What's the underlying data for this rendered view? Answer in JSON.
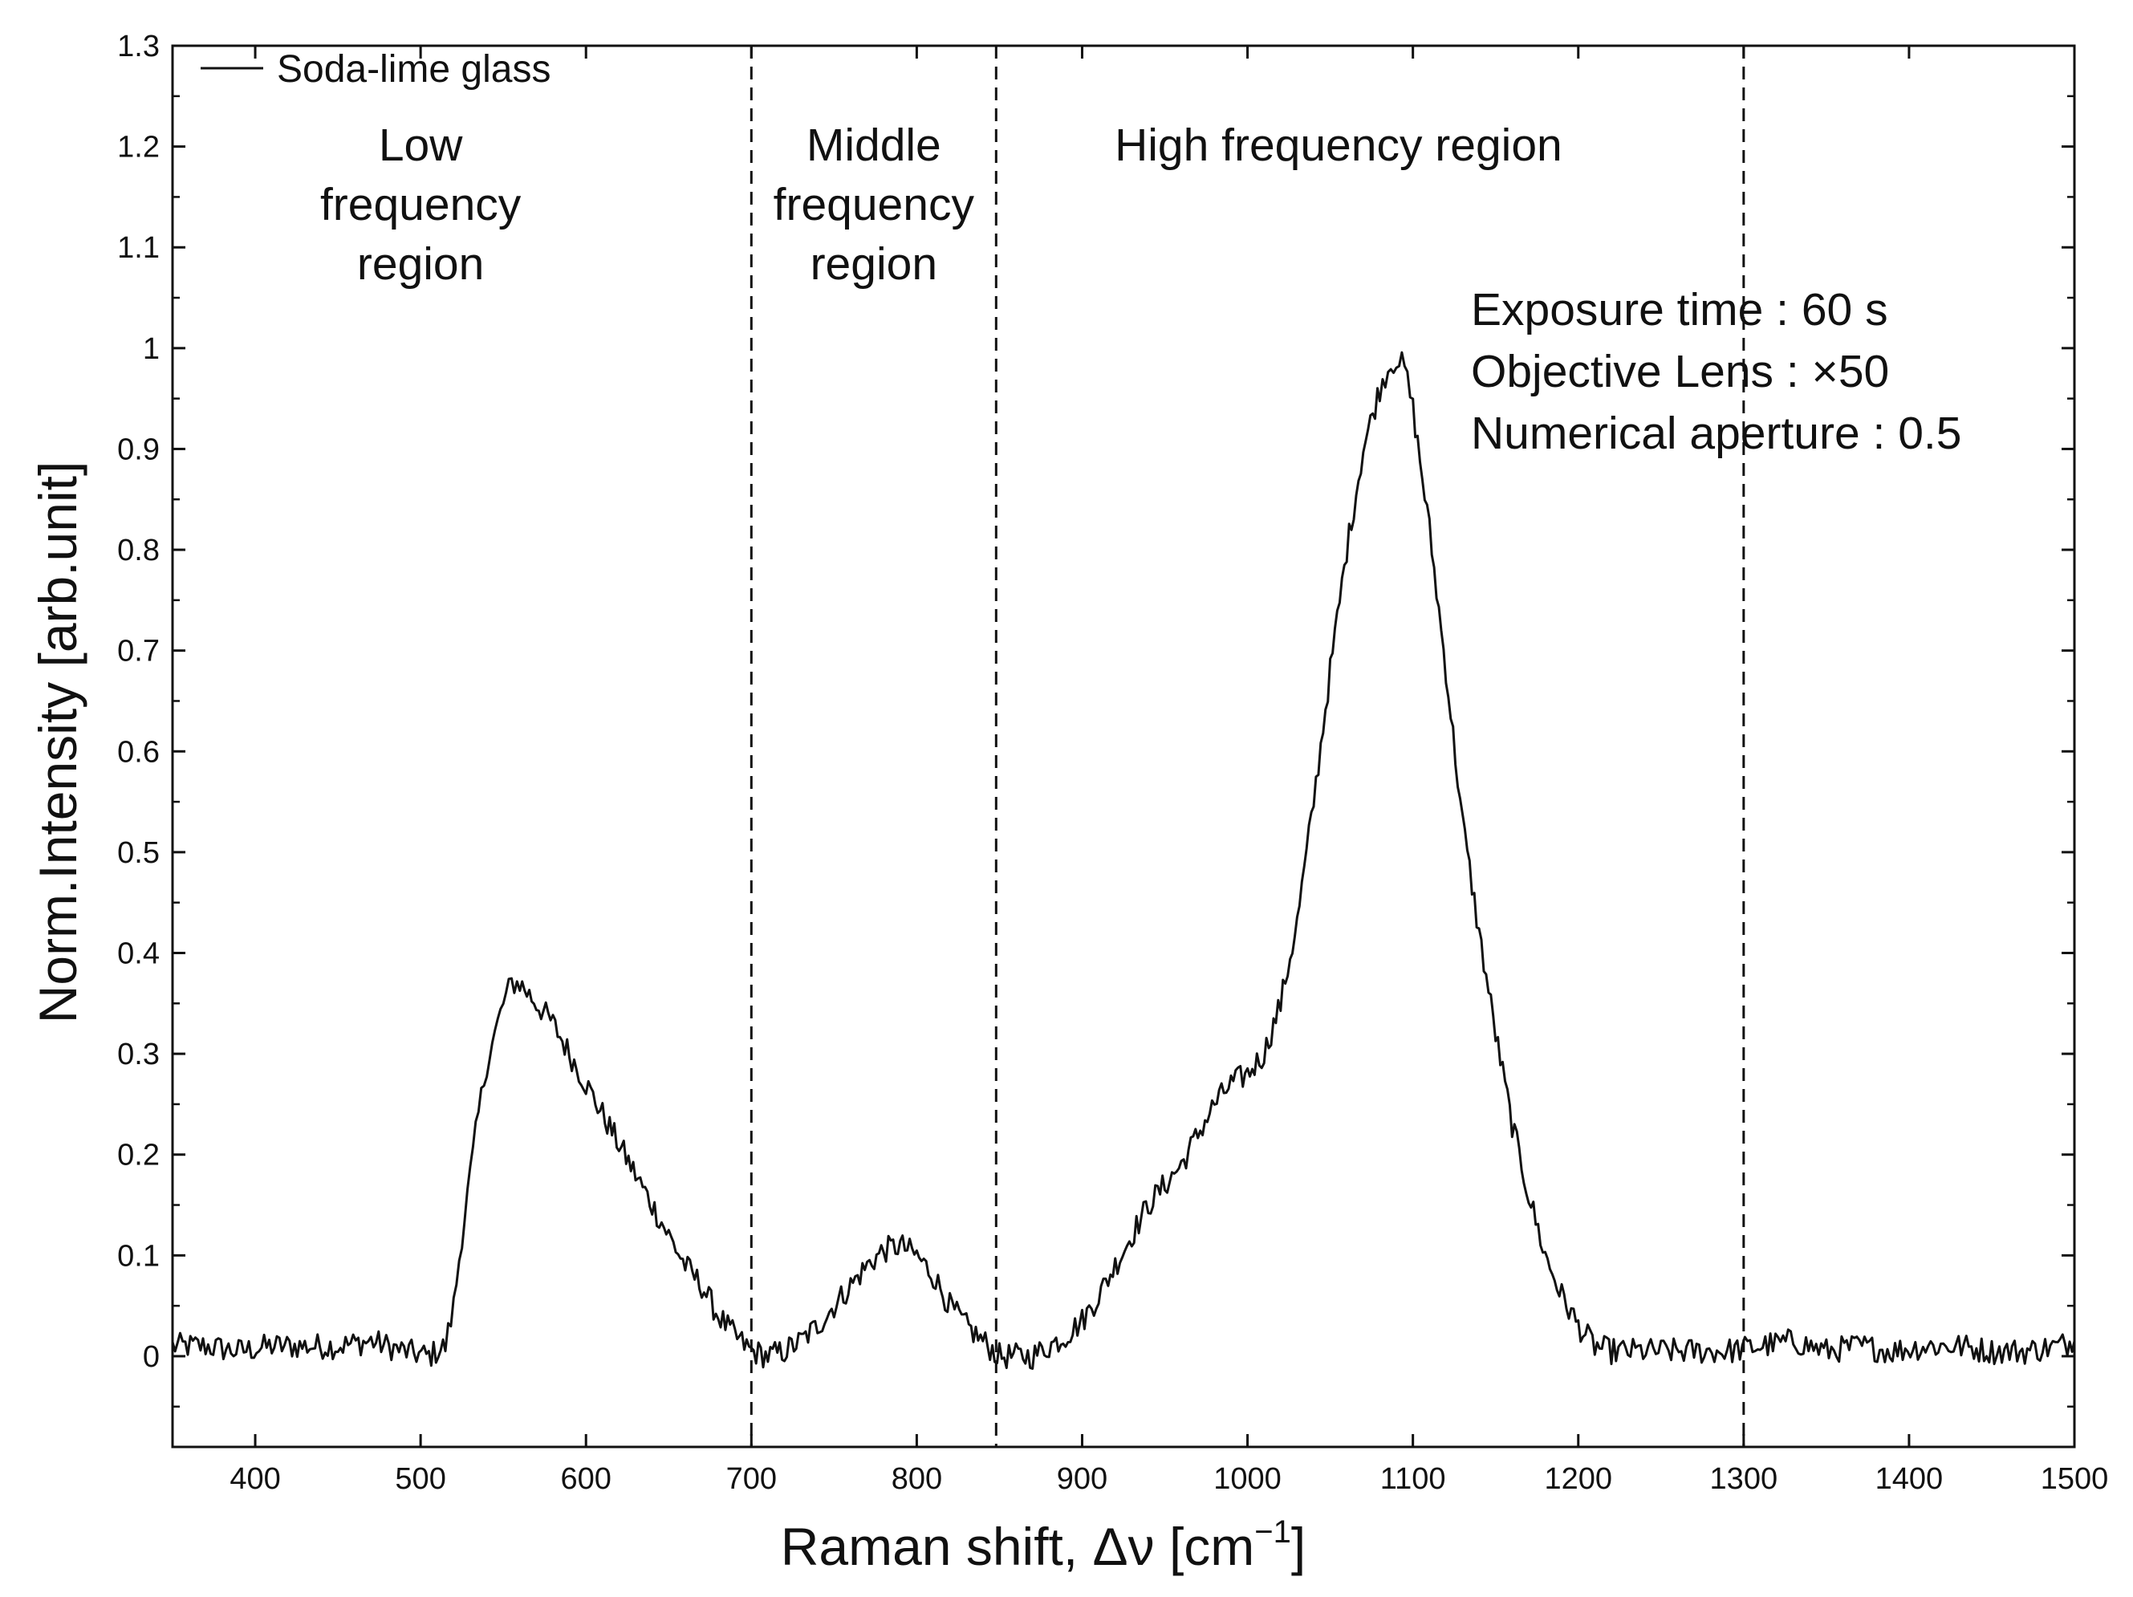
{
  "chart_data": {
    "type": "line",
    "title": "",
    "xlabel": "Raman shift, Δν [cm",
    "xlabel_sup": "−1",
    "xlabel_end": "]",
    "ylabel": "Norm.Intensity [arb.unit]",
    "xlim": [
      350,
      1500
    ],
    "ylim": [
      -0.09,
      1.3
    ],
    "xticks": [
      400,
      500,
      600,
      700,
      800,
      900,
      1000,
      1100,
      1200,
      1300,
      1400,
      1500
    ],
    "xtick_labels": [
      "400",
      "500",
      "600",
      "700",
      "800",
      "900",
      "1000",
      "1100",
      "1200",
      "1300",
      "1400",
      "1500"
    ],
    "yticks": [
      0,
      0.1,
      0.2,
      0.3,
      0.4,
      0.5,
      0.6,
      0.7,
      0.8,
      0.9,
      1,
      1.1,
      1.2,
      1.3
    ],
    "ytick_labels": [
      "0",
      "0.1",
      "0.2",
      "0.3",
      "0.4",
      "0.5",
      "0.6",
      "0.7",
      "0.8",
      "0.9",
      "1",
      "1.1",
      "1.2",
      "1.3"
    ],
    "grid": false,
    "legend": {
      "position": "top-left",
      "entries": [
        "Soda-lime glass"
      ]
    },
    "vlines": [
      700,
      848,
      1300
    ],
    "regions": [
      {
        "lines": [
          "Low",
          "frequency",
          "region"
        ],
        "x": 500
      },
      {
        "lines": [
          "Middle",
          "frequency",
          "region"
        ],
        "x": 774
      },
      {
        "lines": [
          "High frequency region"
        ],
        "x": 1055
      }
    ],
    "info_text": [
      "Exposure time : 60 s",
      "Objective Lens : ×50",
      "Numerical aperture : 0.5"
    ],
    "series": [
      {
        "name": "Soda-lime glass",
        "color": "#111111",
        "x": [
          350,
          370,
          390,
          410,
          430,
          450,
          470,
          490,
          505,
          515,
          520,
          525,
          530,
          535,
          540,
          545,
          550,
          555,
          560,
          570,
          580,
          590,
          600,
          610,
          620,
          630,
          640,
          650,
          660,
          670,
          680,
          690,
          700,
          710,
          720,
          730,
          740,
          750,
          760,
          770,
          780,
          790,
          800,
          810,
          820,
          830,
          840,
          850,
          860,
          870,
          880,
          890,
          900,
          910,
          920,
          930,
          940,
          950,
          960,
          970,
          980,
          990,
          1000,
          1010,
          1020,
          1030,
          1040,
          1050,
          1060,
          1070,
          1080,
          1085,
          1090,
          1095,
          1100,
          1110,
          1120,
          1130,
          1140,
          1150,
          1160,
          1170,
          1180,
          1190,
          1200,
          1210,
          1220,
          1230,
          1250,
          1270,
          1290,
          1310,
          1330,
          1350,
          1370,
          1390,
          1410,
          1430,
          1450,
          1470,
          1490,
          1500
        ],
        "y": [
          0.01,
          0.01,
          0.005,
          0.01,
          0.01,
          0.01,
          0.015,
          0.005,
          0.0,
          0.01,
          0.05,
          0.12,
          0.18,
          0.24,
          0.29,
          0.32,
          0.35,
          0.37,
          0.37,
          0.35,
          0.33,
          0.3,
          0.27,
          0.24,
          0.21,
          0.18,
          0.15,
          0.12,
          0.09,
          0.07,
          0.04,
          0.02,
          0.005,
          0.0,
          0.005,
          0.015,
          0.03,
          0.05,
          0.07,
          0.09,
          0.105,
          0.11,
          0.1,
          0.08,
          0.05,
          0.03,
          0.015,
          0.0,
          0.0,
          0.0,
          0.01,
          0.02,
          0.035,
          0.06,
          0.09,
          0.12,
          0.15,
          0.17,
          0.19,
          0.22,
          0.25,
          0.27,
          0.28,
          0.3,
          0.35,
          0.43,
          0.55,
          0.68,
          0.8,
          0.9,
          0.96,
          0.98,
          0.99,
          0.98,
          0.94,
          0.82,
          0.68,
          0.53,
          0.42,
          0.32,
          0.23,
          0.16,
          0.1,
          0.06,
          0.03,
          0.01,
          0.005,
          0.005,
          0.005,
          0.005,
          0.005,
          0.01,
          0.015,
          0.005,
          0.01,
          0.005,
          0.01,
          0.01,
          0.005,
          0.005,
          0.01,
          0.015
        ]
      }
    ]
  }
}
